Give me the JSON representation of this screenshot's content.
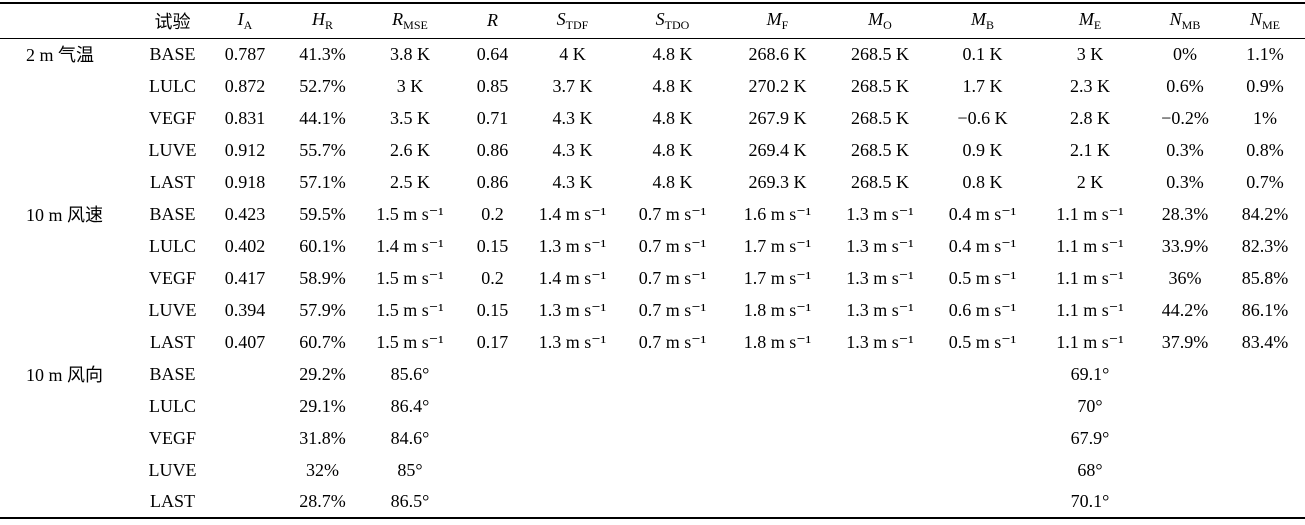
{
  "header": [
    "试验",
    {
      "symbol": "I",
      "sub": "A"
    },
    {
      "symbol": "H",
      "sub": "R"
    },
    {
      "symbol": "R",
      "sub": "MSE"
    },
    {
      "symbol": "R"
    },
    {
      "symbol": "S",
      "sub": "TDF"
    },
    {
      "symbol": "S",
      "sub": "TDO"
    },
    {
      "symbol": "M",
      "sub": "F"
    },
    {
      "symbol": "M",
      "sub": "O"
    },
    {
      "symbol": "M",
      "sub": "B"
    },
    {
      "symbol": "M",
      "sub": "E"
    },
    {
      "symbol": "N",
      "sub": "MB"
    },
    {
      "symbol": "N",
      "sub": "ME"
    }
  ],
  "groups": [
    {
      "label": "2 m  气温",
      "rows": [
        [
          "BASE",
          "0.787",
          "41.3%",
          "3.8 K",
          "0.64",
          "4 K",
          "4.8 K",
          "268.6 K",
          "268.5 K",
          "0.1 K",
          "3 K",
          "0%",
          "1.1%"
        ],
        [
          "LULC",
          "0.872",
          "52.7%",
          "3 K",
          "0.85",
          "3.7 K",
          "4.8 K",
          "270.2 K",
          "268.5 K",
          "1.7 K",
          "2.3 K",
          "0.6%",
          "0.9%"
        ],
        [
          "VEGF",
          "0.831",
          "44.1%",
          "3.5 K",
          "0.71",
          "4.3 K",
          "4.8 K",
          "267.9 K",
          "268.5 K",
          "−0.6 K",
          "2.8 K",
          "−0.2%",
          "1%"
        ],
        [
          "LUVE",
          "0.912",
          "55.7%",
          "2.6 K",
          "0.86",
          "4.3 K",
          "4.8 K",
          "269.4 K",
          "268.5 K",
          "0.9 K",
          "2.1 K",
          "0.3%",
          "0.8%"
        ],
        [
          "LAST",
          "0.918",
          "57.1%",
          "2.5 K",
          "0.86",
          "4.3 K",
          "4.8 K",
          "269.3 K",
          "268.5 K",
          "0.8 K",
          "2 K",
          "0.3%",
          "0.7%"
        ]
      ]
    },
    {
      "label": "10 m  风速",
      "rows": [
        [
          "BASE",
          "0.423",
          "59.5%",
          "1.5 m s⁻¹",
          "0.2",
          "1.4 m s⁻¹",
          "0.7 m s⁻¹",
          "1.6 m s⁻¹",
          "1.3 m s⁻¹",
          "0.4 m s⁻¹",
          "1.1 m s⁻¹",
          "28.3%",
          "84.2%"
        ],
        [
          "LULC",
          "0.402",
          "60.1%",
          "1.4 m s⁻¹",
          "0.15",
          "1.3 m s⁻¹",
          "0.7 m s⁻¹",
          "1.7 m s⁻¹",
          "1.3 m s⁻¹",
          "0.4 m s⁻¹",
          "1.1 m s⁻¹",
          "33.9%",
          "82.3%"
        ],
        [
          "VEGF",
          "0.417",
          "58.9%",
          "1.5 m s⁻¹",
          "0.2",
          "1.4 m s⁻¹",
          "0.7 m s⁻¹",
          "1.7 m s⁻¹",
          "1.3 m s⁻¹",
          "0.5 m s⁻¹",
          "1.1 m s⁻¹",
          "36%",
          "85.8%"
        ],
        [
          "LUVE",
          "0.394",
          "57.9%",
          "1.5 m s⁻¹",
          "0.15",
          "1.3 m s⁻¹",
          "0.7 m s⁻¹",
          "1.8 m s⁻¹",
          "1.3 m s⁻¹",
          "0.6 m s⁻¹",
          "1.1 m s⁻¹",
          "44.2%",
          "86.1%"
        ],
        [
          "LAST",
          "0.407",
          "60.7%",
          "1.5 m s⁻¹",
          "0.17",
          "1.3 m s⁻¹",
          "0.7 m s⁻¹",
          "1.8 m s⁻¹",
          "1.3 m s⁻¹",
          "0.5 m s⁻¹",
          "1.1 m s⁻¹",
          "37.9%",
          "83.4%"
        ]
      ]
    },
    {
      "label": "10 m  风向",
      "rows": [
        [
          "BASE",
          null,
          "29.2%",
          "85.6°",
          null,
          null,
          null,
          null,
          null,
          null,
          "69.1°",
          null,
          null
        ],
        [
          "LULC",
          null,
          "29.1%",
          "86.4°",
          null,
          null,
          null,
          null,
          null,
          null,
          "70°",
          null,
          null
        ],
        [
          "VEGF",
          null,
          "31.8%",
          "84.6°",
          null,
          null,
          null,
          null,
          null,
          null,
          "67.9°",
          null,
          null
        ],
        [
          "LUVE",
          null,
          "32%",
          "85°",
          null,
          null,
          null,
          null,
          null,
          null,
          "68°",
          null,
          null
        ],
        [
          "LAST",
          null,
          "28.7%",
          "86.5°",
          null,
          null,
          null,
          null,
          null,
          null,
          "70.1°",
          null,
          null
        ]
      ]
    }
  ]
}
